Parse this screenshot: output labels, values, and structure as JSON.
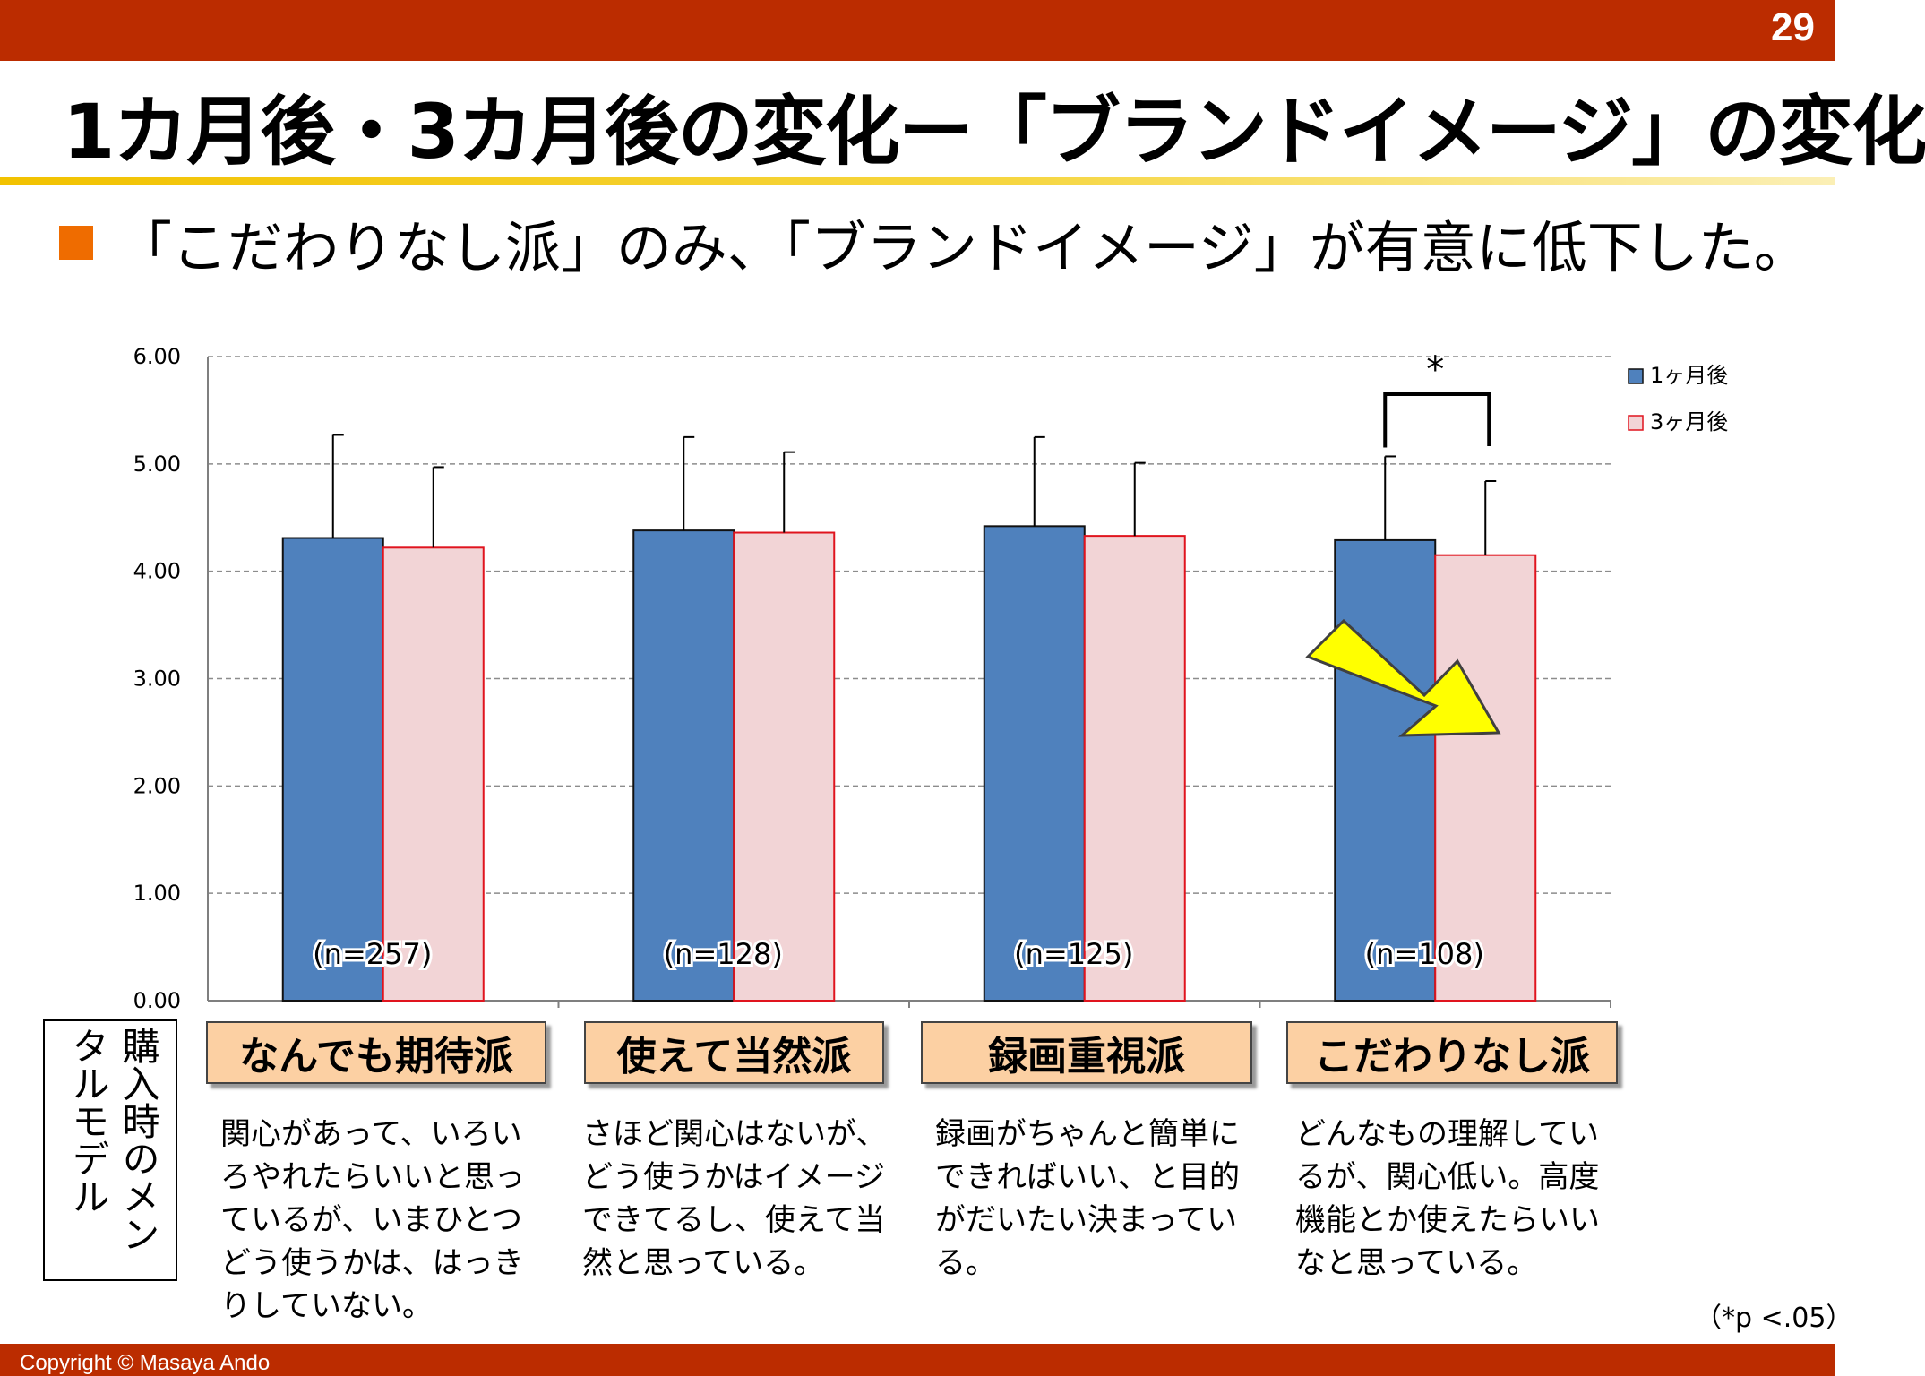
{
  "page_number": "29",
  "title": "1カ月後・3カ月後の変化ー「ブランドイメージ」の変化",
  "bullet": "「こだわりなし派」のみ、「ブランドイメージ」が有意に低下した。",
  "colors": {
    "bar_1m": "#4f81bd",
    "bar_3m": "#f2d4d6",
    "bar_3m_border": "#e0141e",
    "header_bar": "#bb2c00",
    "arrow": "#ffff00"
  },
  "chart_data": {
    "type": "bar",
    "categories": [
      "なんでも期待派",
      "使えて当然派",
      "録画重視派",
      "こだわりなし派"
    ],
    "series": [
      {
        "name": "1ヶ月後",
        "values": [
          4.31,
          4.38,
          4.42,
          4.29
        ],
        "error_upper": [
          5.27,
          5.25,
          5.25,
          5.07
        ]
      },
      {
        "name": "3ヶ月後",
        "values": [
          4.22,
          4.36,
          4.33,
          4.15
        ],
        "error_upper": [
          4.97,
          5.11,
          5.01,
          4.84
        ]
      }
    ],
    "sample_sizes": [
      "(n=257)",
      "(n=128)",
      "(n=125)",
      "(n=108)"
    ],
    "ylim": [
      0,
      6
    ],
    "yticks": [
      "0.00",
      "1.00",
      "2.00",
      "3.00",
      "4.00",
      "5.00",
      "6.00"
    ],
    "grid": true,
    "legend_position": "top-right",
    "significance": {
      "category": "こだわりなし派",
      "marker": "*"
    }
  },
  "mental_model_label": "購入時のメンタルモデル",
  "segments": [
    {
      "name": "なんでも期待派",
      "description": "関心があって、いろいろやれたらいいと思っているが、いまひとつどう使うかは、はっきりしていない。"
    },
    {
      "name": "使えて当然派",
      "description": "さほど関心はないが、どう使うかはイメージできてるし、使えて当然と思っている。"
    },
    {
      "name": "録画重視派",
      "description": "録画がちゃんと簡単にできればいい、と目的がだいたい決まっている。"
    },
    {
      "name": "こだわりなし派",
      "description": "どんなもの理解しているが、関心低い。高度機能とか使えたらいいなと思っている。"
    }
  ],
  "footnote": "（*p <.05）",
  "copyright": "Copyright ©    Masaya Ando"
}
